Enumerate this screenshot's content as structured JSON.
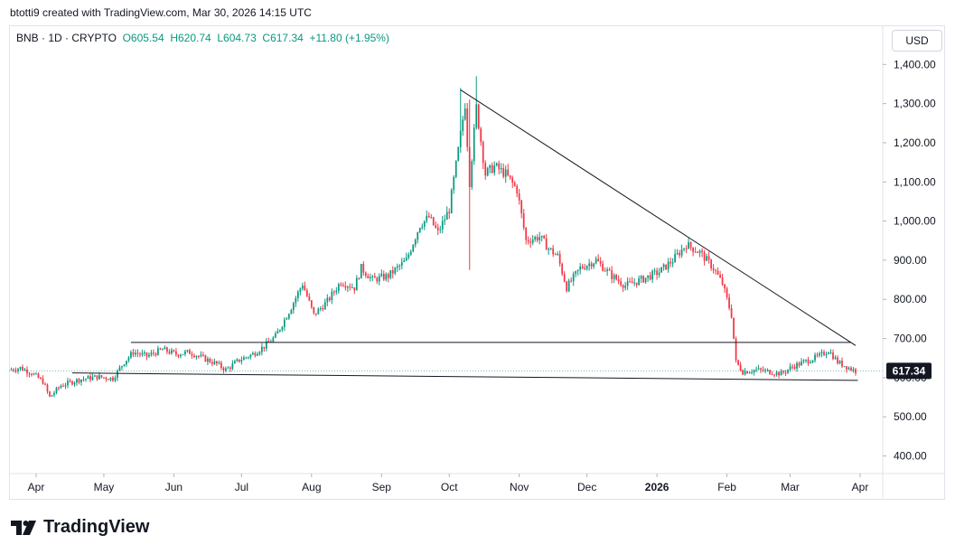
{
  "credit": "btotti9 created with TradingView.com, Mar 30, 2026 14:15 UTC",
  "legend": {
    "symbol": "BNB · 1D · CRYPTO",
    "open": "O605.54",
    "high": "H620.74",
    "low": "L604.73",
    "close": "C617.34",
    "change": "+11.80 (+1.95%)"
  },
  "currency": "USD",
  "brand": "TradingView",
  "colors": {
    "up": "#089981",
    "down": "#f23645",
    "trendline": "#131722",
    "price_badge": "#131722"
  },
  "chart_data": {
    "type": "candlestick",
    "symbol": "BNB",
    "interval": "1D",
    "ylim": [
      355,
      1500
    ],
    "y_ticks": [
      "1,400.00",
      "1,300.00",
      "1,200.00",
      "1,100.00",
      "1,000.00",
      "900.00",
      "800.00",
      "700.00",
      "600.00",
      "500.00",
      "400.00"
    ],
    "y_tick_values": [
      1400,
      1300,
      1200,
      1100,
      1000,
      900,
      800,
      700,
      600,
      500,
      400
    ],
    "x_ticks": [
      {
        "label": "Apr",
        "date": "2025-04-01"
      },
      {
        "label": "May",
        "date": "2025-05-01"
      },
      {
        "label": "Jun",
        "date": "2025-06-01"
      },
      {
        "label": "Jul",
        "date": "2025-07-01"
      },
      {
        "label": "Aug",
        "date": "2025-08-01"
      },
      {
        "label": "Sep",
        "date": "2025-09-01"
      },
      {
        "label": "Oct",
        "date": "2025-10-01"
      },
      {
        "label": "Nov",
        "date": "2025-11-01"
      },
      {
        "label": "Dec",
        "date": "2025-12-01"
      },
      {
        "label": "2026",
        "date": "2026-01-01",
        "bold": true
      },
      {
        "label": "Feb",
        "date": "2026-02-01"
      },
      {
        "label": "Mar",
        "date": "2026-03-01"
      },
      {
        "label": "Apr",
        "date": "2026-04-01"
      }
    ],
    "x_range": [
      "2025-03-20",
      "2026-04-11"
    ],
    "last_price": 617.34,
    "last_price_label": "617.34",
    "price_path": [
      [
        "2025-03-20",
        620
      ],
      [
        "2025-03-25",
        625
      ],
      [
        "2025-03-30",
        612
      ],
      [
        "2025-04-04",
        590
      ],
      [
        "2025-04-07",
        550
      ],
      [
        "2025-04-12",
        580
      ],
      [
        "2025-04-20",
        595
      ],
      [
        "2025-04-28",
        602
      ],
      [
        "2025-05-05",
        598
      ],
      [
        "2025-05-10",
        640
      ],
      [
        "2025-05-14",
        665
      ],
      [
        "2025-05-20",
        655
      ],
      [
        "2025-05-27",
        672
      ],
      [
        "2025-06-02",
        660
      ],
      [
        "2025-06-08",
        665
      ],
      [
        "2025-06-14",
        650
      ],
      [
        "2025-06-20",
        635
      ],
      [
        "2025-06-24",
        620
      ],
      [
        "2025-06-30",
        645
      ],
      [
        "2025-07-06",
        660
      ],
      [
        "2025-07-11",
        680
      ],
      [
        "2025-07-16",
        705
      ],
      [
        "2025-07-23",
        780
      ],
      [
        "2025-07-28",
        840
      ],
      [
        "2025-08-02",
        760
      ],
      [
        "2025-08-08",
        795
      ],
      [
        "2025-08-14",
        845
      ],
      [
        "2025-08-20",
        830
      ],
      [
        "2025-08-23",
        880
      ],
      [
        "2025-08-28",
        850
      ],
      [
        "2025-09-04",
        860
      ],
      [
        "2025-09-12",
        900
      ],
      [
        "2025-09-18",
        990
      ],
      [
        "2025-09-22",
        1010
      ],
      [
        "2025-09-26",
        970
      ],
      [
        "2025-10-01",
        1030
      ],
      [
        "2025-10-05",
        1180
      ],
      [
        "2025-10-08",
        1300
      ],
      [
        "2025-10-10",
        1100
      ],
      [
        "2025-10-13",
        1290
      ],
      [
        "2025-10-17",
        1120
      ],
      [
        "2025-10-21",
        1140
      ],
      [
        "2025-10-26",
        1120
      ],
      [
        "2025-10-31",
        1080
      ],
      [
        "2025-11-04",
        950
      ],
      [
        "2025-11-10",
        960
      ],
      [
        "2025-11-14",
        930
      ],
      [
        "2025-11-18",
        910
      ],
      [
        "2025-11-22",
        830
      ],
      [
        "2025-11-28",
        880
      ],
      [
        "2025-12-05",
        900
      ],
      [
        "2025-12-12",
        860
      ],
      [
        "2025-12-18",
        835
      ],
      [
        "2025-12-25",
        850
      ],
      [
        "2026-01-02",
        870
      ],
      [
        "2026-01-08",
        900
      ],
      [
        "2026-01-14",
        940
      ],
      [
        "2026-01-20",
        920
      ],
      [
        "2026-01-26",
        880
      ],
      [
        "2026-01-30",
        840
      ],
      [
        "2026-02-03",
        760
      ],
      [
        "2026-02-05",
        640
      ],
      [
        "2026-02-08",
        615
      ],
      [
        "2026-02-14",
        620
      ],
      [
        "2026-02-20",
        615
      ],
      [
        "2026-02-25",
        610
      ],
      [
        "2026-03-02",
        628
      ],
      [
        "2026-03-08",
        642
      ],
      [
        "2026-03-14",
        655
      ],
      [
        "2026-03-18",
        670
      ],
      [
        "2026-03-22",
        640
      ],
      [
        "2026-03-26",
        628
      ],
      [
        "2026-03-30",
        617
      ]
    ],
    "trendlines": [
      {
        "name": "descending-resistance",
        "from": [
          "2025-10-06",
          1335
        ],
        "to": [
          "2026-03-30",
          682
        ]
      },
      {
        "name": "range-top",
        "from": [
          "2025-05-13",
          690
        ],
        "to": [
          "2026-03-28",
          690
        ]
      },
      {
        "name": "range-bottom",
        "from": [
          "2025-04-17",
          612
        ],
        "to": [
          "2026-03-31",
          593
        ]
      }
    ]
  }
}
